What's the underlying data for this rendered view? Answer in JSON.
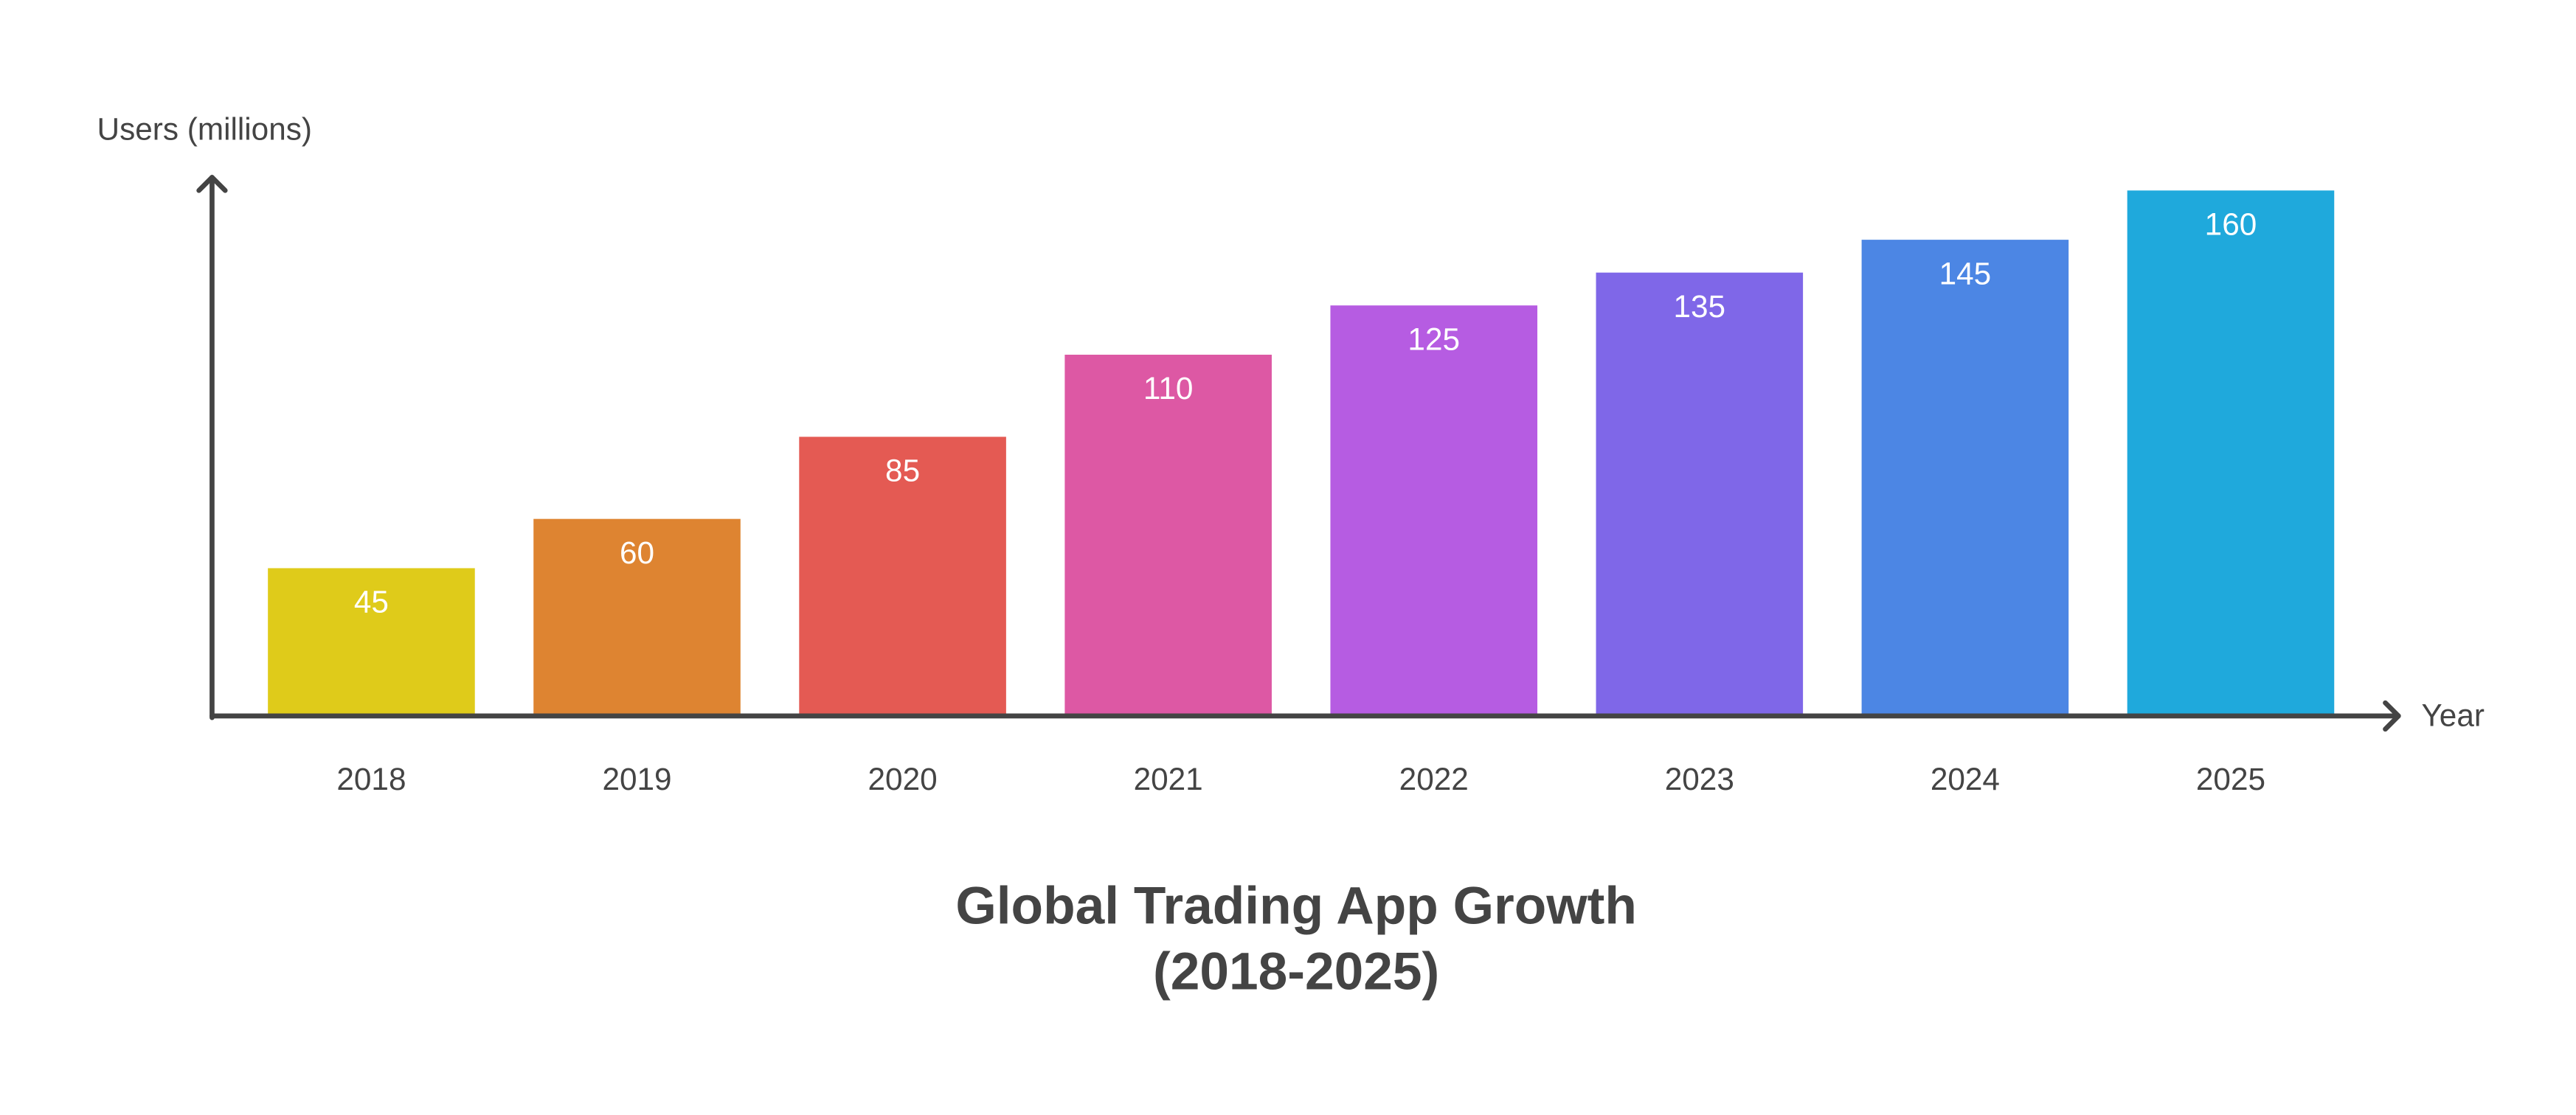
{
  "chart_data": {
    "type": "bar",
    "title": [
      "Global Trading App Growth",
      "(2018-2025)"
    ],
    "y_label": "Users (millions)",
    "x_label": "Year",
    "categories": [
      "2018",
      "2019",
      "2020",
      "2021",
      "2022",
      "2023",
      "2024",
      "2025"
    ],
    "values": [
      45,
      60,
      85,
      110,
      125,
      135,
      145,
      160
    ],
    "colors": [
      "#dfcb1a",
      "#de8431",
      "#e45a53",
      "#dd58a4",
      "#b65ce2",
      "#7f67e8",
      "#4c86e4",
      "#1fa9dc"
    ],
    "ylim": [
      0,
      164
    ]
  }
}
